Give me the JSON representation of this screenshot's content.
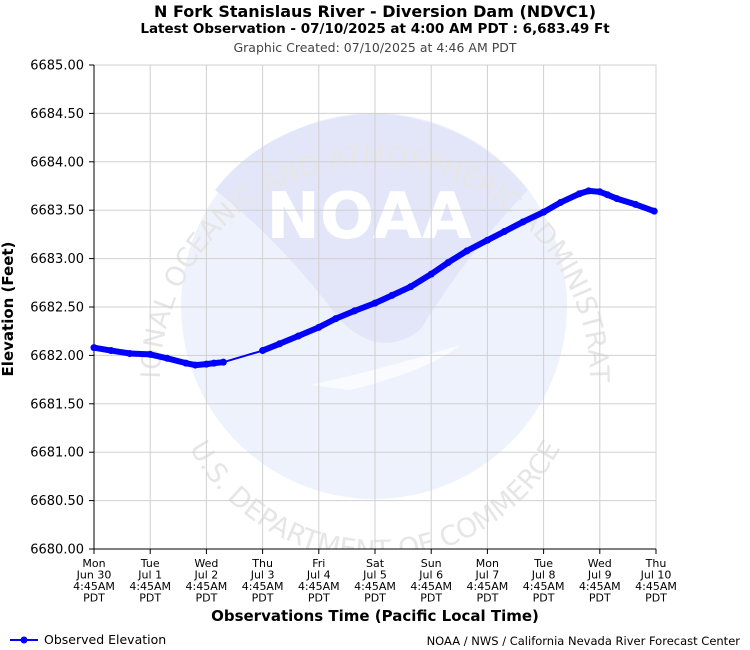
{
  "header": {
    "title": "N Fork Stanislaus River - Diversion Dam (NDVC1)",
    "subtitle": "Latest Observation - 07/10/2025 at 4:00 AM PDT : 6,683.49 Ft",
    "created": "Graphic Created: 07/10/2025 at 4:46 AM PDT"
  },
  "footer": {
    "legend_label": "Observed Elevation",
    "credit": "NOAA / NWS / California Nevada River Forecast Center"
  },
  "watermark": {
    "logo_text": "NOAA",
    "top_arc": "NATIONAL OCEANIC AND ATMOSPHERIC ADMINISTRATION",
    "bottom_arc": "U.S. DEPARTMENT OF COMMERCE"
  },
  "colors": {
    "series": "#0000ff",
    "grid": "#d0d0d0",
    "watermark": "#e8ecfa"
  },
  "chart_data": {
    "type": "line",
    "xlabel": "Observations Time (Pacific Local Time)",
    "ylabel": "Elevation (Feet)",
    "ylim": [
      6680.0,
      6685.0
    ],
    "grid": true,
    "legend_placement": "bottom-left",
    "y_ticks": [
      "6685.00",
      "6684.50",
      "6684.00",
      "6683.50",
      "6683.00",
      "6682.50",
      "6682.00",
      "6681.50",
      "6681.00",
      "6680.50",
      "6680.00"
    ],
    "x_ticks": [
      [
        "Mon",
        "Jun 30",
        "4:45AM",
        "PDT"
      ],
      [
        "Tue",
        "Jul 1",
        "4:45AM",
        "PDT"
      ],
      [
        "Wed",
        "Jul 2",
        "4:45AM",
        "PDT"
      ],
      [
        "Thu",
        "Jul 3",
        "4:45AM",
        "PDT"
      ],
      [
        "Fri",
        "Jul 4",
        "4:45AM",
        "PDT"
      ],
      [
        "Sat",
        "Jul 5",
        "4:45AM",
        "PDT"
      ],
      [
        "Sun",
        "Jul 6",
        "4:45AM",
        "PDT"
      ],
      [
        "Mon",
        "Jul 7",
        "4:45AM",
        "PDT"
      ],
      [
        "Tue",
        "Jul 8",
        "4:45AM",
        "PDT"
      ],
      [
        "Wed",
        "Jul 9",
        "4:45AM",
        "PDT"
      ],
      [
        "Thu",
        "Jul 10",
        "4:45AM",
        "PDT"
      ]
    ],
    "series": [
      {
        "name": "Observed Elevation",
        "x": [
          "06/30 04:45",
          "06/30 12:00",
          "06/30 20:00",
          "07/01 04:45",
          "07/01 12:00",
          "07/01 20:00",
          "07/02 00:00",
          "07/02 04:45",
          "07/02 08:00",
          "07/02 12:00",
          "07/03 04:45",
          "07/03 12:00",
          "07/03 20:00",
          "07/04 04:45",
          "07/04 12:00",
          "07/04 20:00",
          "07/05 04:45",
          "07/05 12:00",
          "07/05 20:00",
          "07/06 04:45",
          "07/06 12:00",
          "07/06 20:00",
          "07/07 04:45",
          "07/07 12:00",
          "07/07 20:00",
          "07/08 04:45",
          "07/08 12:00",
          "07/08 20:00",
          "07/09 00:00",
          "07/09 04:45",
          "07/09 08:00",
          "07/09 12:00",
          "07/09 20:00",
          "07/10 04:00"
        ],
        "values": [
          6682.08,
          6682.05,
          6682.02,
          6682.01,
          6681.97,
          6681.92,
          6681.9,
          6681.91,
          6681.92,
          6681.93,
          6682.05,
          6682.12,
          6682.2,
          6682.29,
          6682.38,
          6682.46,
          6682.54,
          6682.62,
          6682.71,
          6682.84,
          6682.96,
          6683.08,
          6683.19,
          6683.28,
          6683.38,
          6683.48,
          6683.58,
          6683.67,
          6683.7,
          6683.69,
          6683.66,
          6683.62,
          6683.56,
          6683.49
        ]
      }
    ]
  }
}
